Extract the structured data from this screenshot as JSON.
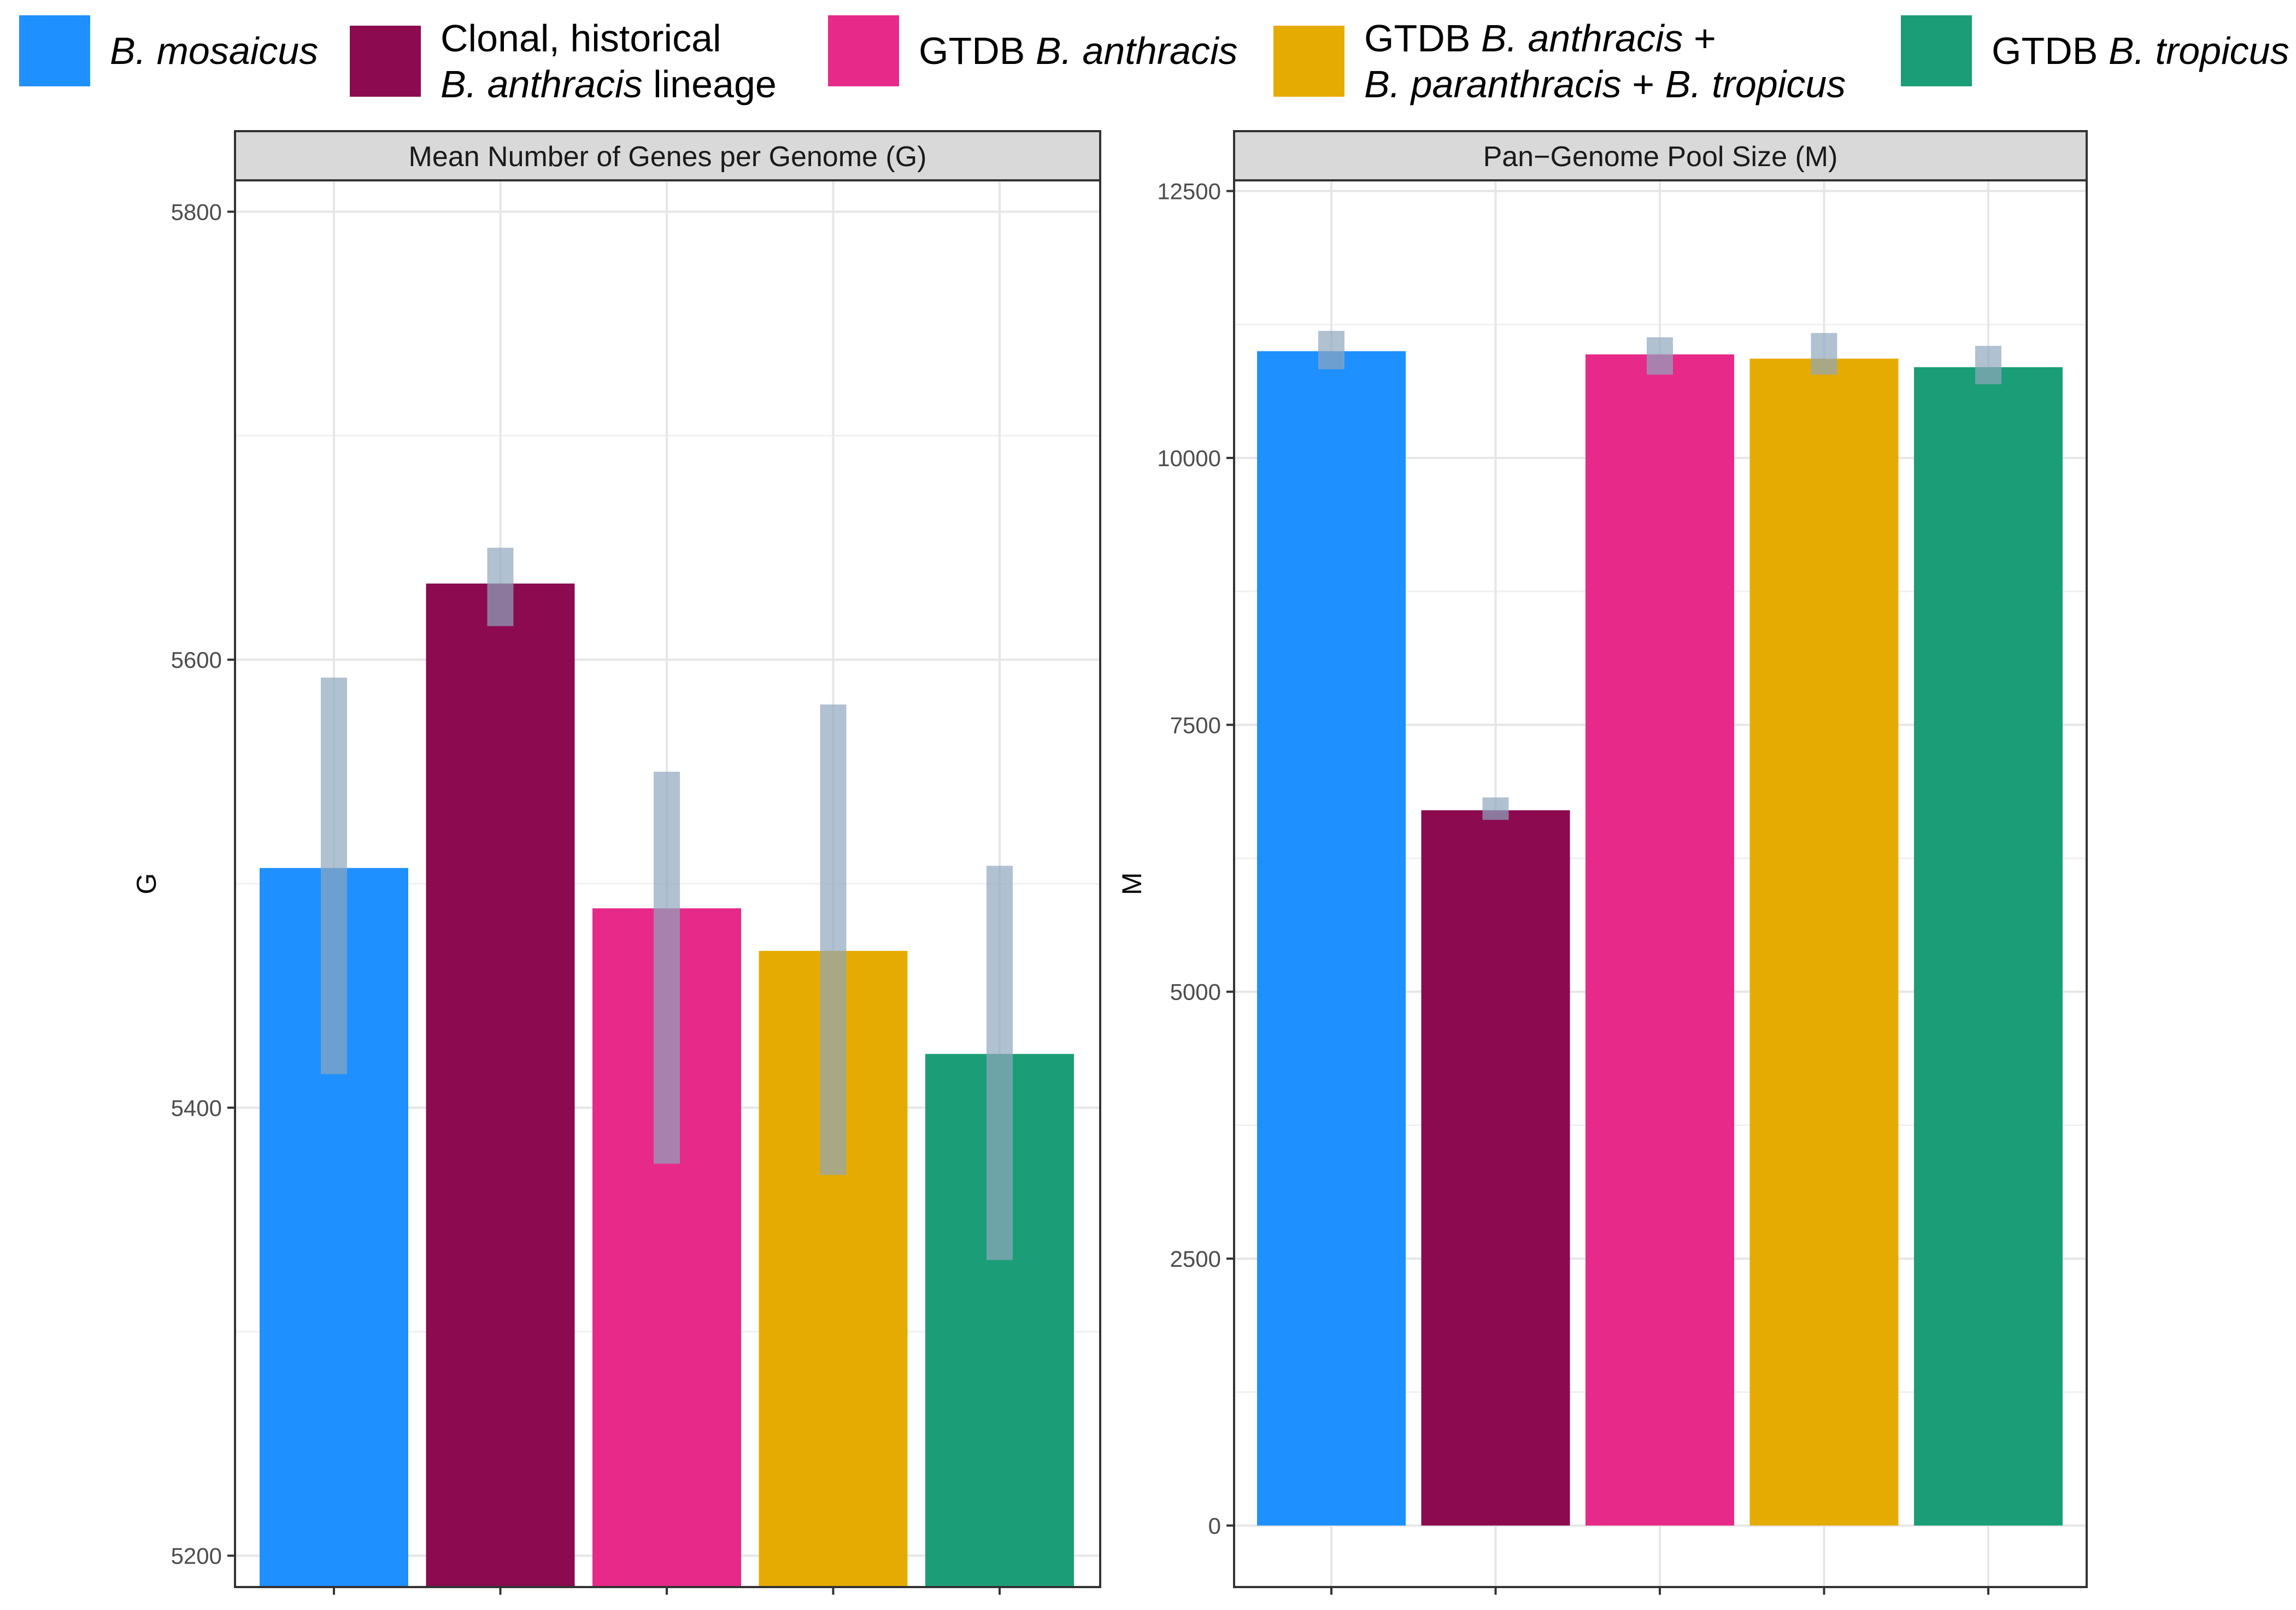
{
  "legend": [
    {
      "lines": [
        [
          {
            "t": "B. mosaicus",
            "i": true
          }
        ]
      ],
      "color": "#1e90ff"
    },
    {
      "lines": [
        [
          {
            "t": "Clonal, historical",
            "i": false
          }
        ],
        [
          {
            "t": "B. anthracis",
            "i": true
          },
          {
            "t": " lineage",
            "i": false
          }
        ]
      ],
      "color": "#8b0a50"
    },
    {
      "lines": [
        [
          {
            "t": "GTDB ",
            "i": false
          },
          {
            "t": "B. anthracis",
            "i": true
          }
        ]
      ],
      "color": "#e7298a"
    },
    {
      "lines": [
        [
          {
            "t": "GTDB ",
            "i": false
          },
          {
            "t": "B. anthracis",
            "i": true
          },
          {
            "t": " +",
            "i": false
          }
        ],
        [
          {
            "t": "B. paranthracis",
            "i": true
          },
          {
            "t": " + ",
            "i": false
          },
          {
            "t": "B. tropicus",
            "i": true
          }
        ]
      ],
      "color": "#e6ab02"
    },
    {
      "lines": [
        [
          {
            "t": "GTDB ",
            "i": false
          },
          {
            "t": "B. tropicus",
            "i": true
          }
        ]
      ],
      "color": "#1b9e77"
    }
  ],
  "error_bar_color": "#8fa7bd",
  "chart_data": [
    {
      "type": "bar",
      "title": "Mean Number of Genes per Genome (G)",
      "xlabel": "",
      "ylabel": "G",
      "ylim": [
        5186,
        5814
      ],
      "yticks": [
        5200,
        5400,
        5600,
        5800
      ],
      "categories": [
        "B. mosaicus",
        "Clonal, historical B. anthracis lineage",
        "GTDB B. anthracis",
        "GTDB B. anthracis + B. paranthracis + B. tropicus",
        "GTDB B. tropicus"
      ],
      "values": [
        5507,
        5634,
        5489,
        5470,
        5424
      ],
      "error_low": [
        5415,
        5615,
        5375,
        5370,
        5332
      ],
      "error_high": [
        5592,
        5650,
        5550,
        5580,
        5508
      ]
    },
    {
      "type": "bar",
      "title": "Pan−Genome Pool Size (M)",
      "xlabel": "",
      "ylabel": "M",
      "ylim": [
        -576,
        12600
      ],
      "yticks": [
        0,
        2500,
        5000,
        7500,
        10000,
        12500
      ],
      "categories": [
        "B. mosaicus",
        "Clonal, historical B. anthracis lineage",
        "GTDB B. anthracis",
        "GTDB B. anthracis + B. paranthracis + B. tropicus",
        "GTDB B. tropicus"
      ],
      "values": [
        11000,
        6700,
        10970,
        10930,
        10850
      ],
      "error_low": [
        10830,
        6610,
        10780,
        10780,
        10690
      ],
      "error_high": [
        11190,
        6820,
        11130,
        11170,
        11050
      ]
    }
  ]
}
